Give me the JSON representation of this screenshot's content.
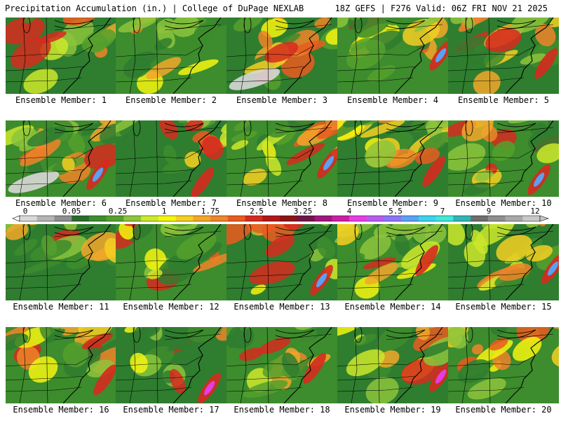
{
  "header": {
    "title": "Precipitation Accumulation (in.) | College of DuPage NEXLAB",
    "valid": "18Z GEFS | F276 Valid: 06Z FRI NOV 21 2025"
  },
  "legend": {
    "labels": [
      "0",
      "0.05",
      "0.25",
      "1",
      "1.75",
      "2.5",
      "3.25",
      "4",
      "5.5",
      "7",
      "9",
      "12"
    ],
    "colors": [
      "#d8d8d8",
      "#b4b4b4",
      "#8e8e8e",
      "#2a6b2a",
      "#3d8c2d",
      "#55a02d",
      "#8cc43c",
      "#cde82c",
      "#f5f510",
      "#f5cf22",
      "#f2a72a",
      "#f08428",
      "#ea5a20",
      "#d62a1e",
      "#b01818",
      "#8c1414",
      "#74124a",
      "#a0167c",
      "#cc1ea0",
      "#e63ce6",
      "#b85af0",
      "#8c74f5",
      "#5aa0f5",
      "#3cd2f0",
      "#40e8d8",
      "#32b4b4",
      "#6e6e6e",
      "#8e8e8e",
      "#a8a8a8",
      "#c8c8c8"
    ]
  },
  "members": [
    {
      "label": "Ensemble Member: 1"
    },
    {
      "label": "Ensemble Member: 2"
    },
    {
      "label": "Ensemble Member: 3"
    },
    {
      "label": "Ensemble Member: 4"
    },
    {
      "label": "Ensemble Member: 5"
    },
    {
      "label": "Ensemble Member: 6"
    },
    {
      "label": "Ensemble Member: 7"
    },
    {
      "label": "Ensemble Member: 8"
    },
    {
      "label": "Ensemble Member: 9"
    },
    {
      "label": "Ensemble Member: 10"
    },
    {
      "label": "Ensemble Member: 11"
    },
    {
      "label": "Ensemble Member: 12"
    },
    {
      "label": "Ensemble Member: 13"
    },
    {
      "label": "Ensemble Member: 14"
    },
    {
      "label": "Ensemble Member: 15"
    },
    {
      "label": "Ensemble Member: 16"
    },
    {
      "label": "Ensemble Member: 17"
    },
    {
      "label": "Ensemble Member: 18"
    },
    {
      "label": "Ensemble Member: 19"
    },
    {
      "label": "Ensemble Member: 20"
    }
  ]
}
